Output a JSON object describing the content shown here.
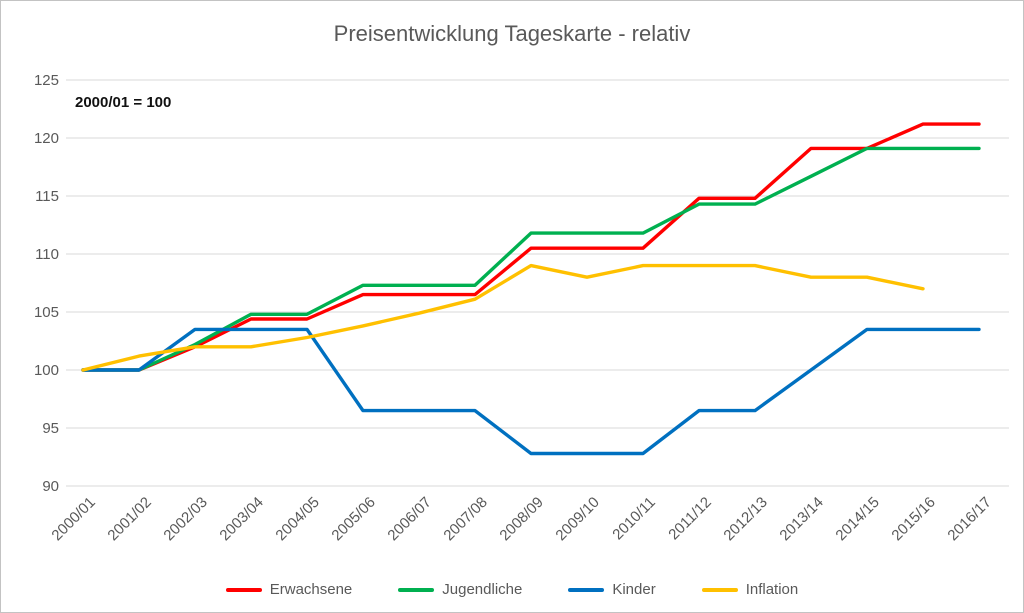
{
  "chart_data": {
    "type": "line",
    "title": "Preisentwicklung Tageskarte - relativ",
    "annotation": "2000/01 = 100",
    "xlabel": "",
    "ylabel": "",
    "ylim": [
      90,
      125
    ],
    "yticks": [
      90,
      95,
      100,
      105,
      110,
      115,
      120,
      125
    ],
    "grid": "horizontal",
    "grid_color": "#d9d9d9",
    "axis_text_color": "#595959",
    "title_color": "#595959",
    "legend_position": "bottom",
    "categories": [
      "2000/01",
      "2001/02",
      "2002/03",
      "2003/04",
      "2004/05",
      "2005/06",
      "2006/07",
      "2007/08",
      "2008/09",
      "2009/10",
      "2010/11",
      "2011/12",
      "2012/13",
      "2013/14",
      "2014/15",
      "2015/16",
      "2016/17"
    ],
    "series": [
      {
        "name": "Erwachsene",
        "color": "#ff0000",
        "values": [
          100,
          100,
          102,
          104.4,
          104.4,
          106.5,
          106.5,
          106.5,
          110.5,
          110.5,
          110.5,
          114.8,
          114.8,
          119.1,
          119.1,
          121.2,
          121.2
        ]
      },
      {
        "name": "Jugendliche",
        "color": "#00b050",
        "values": [
          100,
          100,
          102.2,
          104.8,
          104.8,
          107.3,
          107.3,
          107.3,
          111.8,
          111.8,
          111.8,
          114.3,
          114.3,
          116.7,
          119.1,
          119.1,
          119.1
        ]
      },
      {
        "name": "Kinder",
        "color": "#0070c0",
        "values": [
          100,
          100,
          103.5,
          103.5,
          103.5,
          96.5,
          96.5,
          96.5,
          92.8,
          92.8,
          92.8,
          96.5,
          96.5,
          100,
          103.5,
          103.5,
          103.5
        ]
      },
      {
        "name": "Inflation",
        "color": "#ffc000",
        "values": [
          100,
          101.2,
          102,
          102,
          102.8,
          103.8,
          104.9,
          106.1,
          109,
          108,
          109,
          109,
          109,
          108,
          108,
          107,
          null
        ]
      }
    ]
  }
}
